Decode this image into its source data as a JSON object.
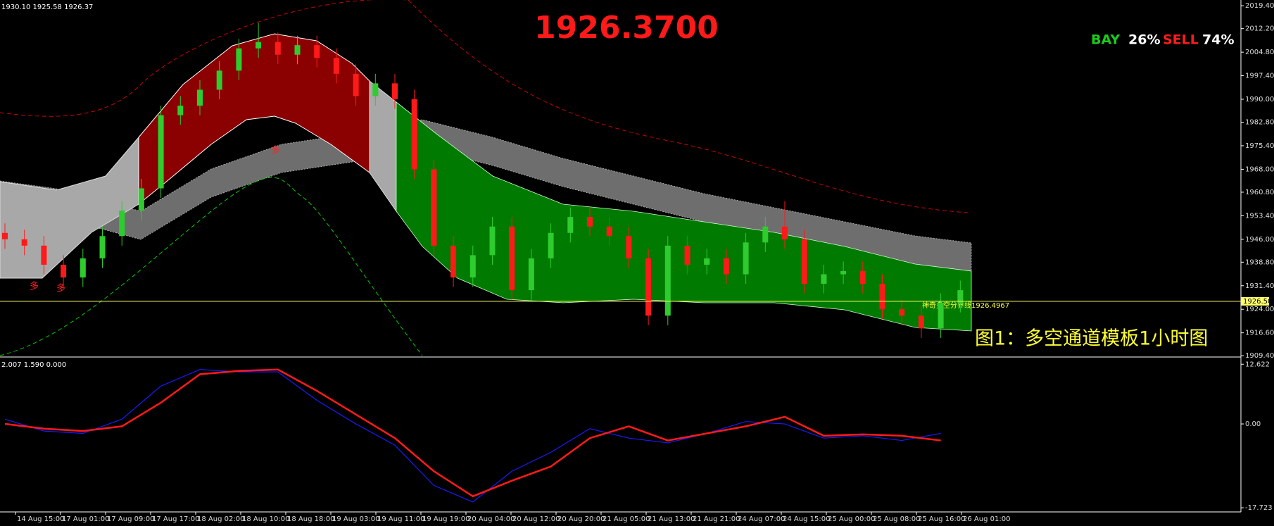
{
  "header": {
    "ohlc_info": "1930.10 1925.58 1926.37",
    "big_price": "1926.3700",
    "bay_label": "BAY",
    "bay_pct": "26%",
    "sell_label": "SELL",
    "sell_pct": "74%",
    "caption": "图1：多空通道模板1小时图",
    "line_label": "神奇多空分界线1926.4967",
    "markers": [
      "多",
      "多",
      "多"
    ],
    "indicator_info": "2.007 1.590 0.000"
  },
  "time_labels": [
    "14 Aug 15:00",
    "17 Aug 01:00",
    "17 Aug 09:00",
    "17 Aug 17:00",
    "18 Aug 02:00",
    "18 Aug 10:00",
    "18 Aug 18:00",
    "19 Aug 03:00",
    "19 Aug 11:00",
    "19 Aug 19:00",
    "20 Aug 04:00",
    "20 Aug 12:00",
    "20 Aug 20:00",
    "21 Aug 05:00",
    "21 Aug 13:00",
    "21 Aug 21:00",
    "24 Aug 07:00",
    "24 Aug 15:00",
    "25 Aug 00:00",
    "25 Aug 08:00",
    "25 Aug 16:00",
    "26 Aug 01:00"
  ],
  "chart_data": [
    {
      "type": "candlestick",
      "up_color": "#2ecc2e",
      "down_color": "#ff1a1a",
      "ylim": [
        1909.0,
        2021.2
      ],
      "yticks": [
        {
          "value": 2019.4,
          "label": "2019.40"
        },
        {
          "value": 2012.2,
          "label": "2012.20"
        },
        {
          "value": 2004.8,
          "label": "2004.80"
        },
        {
          "value": 1997.4,
          "label": "1997.40"
        },
        {
          "value": 1990.0,
          "label": "1990.00"
        },
        {
          "value": 1982.8,
          "label": "1982.80"
        },
        {
          "value": 1975.4,
          "label": "1975.40"
        },
        {
          "value": 1968.0,
          "label": "1968.00"
        },
        {
          "value": 1960.8,
          "label": "1960.80"
        },
        {
          "value": 1953.4,
          "label": "1953.40"
        },
        {
          "value": 1946.0,
          "label": "1946.00"
        },
        {
          "value": 1938.8,
          "label": "1938.80"
        },
        {
          "value": 1931.4,
          "label": "1931.40"
        },
        {
          "value": 1924.0,
          "label": "1924.00"
        },
        {
          "value": 1916.6,
          "label": "1916.60"
        },
        {
          "value": 1909.4,
          "label": "1909.40"
        }
      ],
      "price_line": {
        "value": 1926.5,
        "label": "1926.50",
        "color": "#ffff66"
      },
      "candles": {
        "open": [
          1948,
          1946,
          1944,
          1938,
          1934,
          1940,
          1947,
          1955,
          1962,
          1985,
          1988,
          1993,
          1999,
          2006,
          2008,
          2004,
          2007,
          2003,
          1998,
          1991,
          1995,
          1990,
          1968,
          1944,
          1934,
          1941,
          1950,
          1930,
          1940,
          1948,
          1953,
          1950,
          1947,
          1940,
          1922,
          1944,
          1938,
          1940,
          1935,
          1945,
          1950,
          1946,
          1932,
          1935,
          1936,
          1932,
          1924,
          1922,
          1918,
          1926
        ],
        "high": [
          1951,
          1949,
          1947,
          1941,
          1943,
          1950,
          1958,
          1965,
          1988,
          1991,
          1996,
          2002,
          2009,
          2014,
          2011,
          2010,
          2010,
          2006,
          2001,
          1998,
          1998,
          1993,
          1971,
          1947,
          1944,
          1953,
          1953,
          1943,
          1951,
          1956,
          1956,
          1953,
          1950,
          1943,
          1947,
          1947,
          1943,
          1943,
          1948,
          1953,
          1958,
          1949,
          1938,
          1939,
          1939,
          1935,
          1927,
          1925,
          1929,
          1933
        ],
        "low": [
          1943,
          1941,
          1935,
          1931,
          1931,
          1937,
          1944,
          1952,
          1959,
          1982,
          1985,
          1990,
          1996,
          2003,
          2001,
          2001,
          2000,
          1995,
          1988,
          1988,
          1987,
          1965,
          1941,
          1931,
          1931,
          1938,
          1927,
          1927,
          1937,
          1945,
          1947,
          1944,
          1937,
          1919,
          1919,
          1935,
          1935,
          1932,
          1932,
          1942,
          1943,
          1929,
          1929,
          1932,
          1929,
          1921,
          1919,
          1915,
          1915,
          1923
        ],
        "close": [
          1946,
          1944,
          1938,
          1934,
          1940,
          1947,
          1955,
          1962,
          1985,
          1988,
          1993,
          1999,
          2006,
          2008,
          2004,
          2007,
          2003,
          1998,
          1991,
          1995,
          1990,
          1968,
          1944,
          1934,
          1941,
          1950,
          1930,
          1940,
          1948,
          1953,
          1950,
          1947,
          1940,
          1922,
          1944,
          1938,
          1940,
          1935,
          1945,
          1950,
          1946,
          1932,
          1935,
          1936,
          1932,
          1924,
          1922,
          1918,
          1926,
          1930
        ]
      }
    },
    {
      "type": "line",
      "ylim": [
        -18.6,
        14.0
      ],
      "yticks": [
        {
          "value": 12.622,
          "label": "12.622"
        },
        {
          "value": 0,
          "label": "0.00"
        },
        {
          "value": -17.723,
          "label": "-17.723"
        }
      ],
      "series": [
        {
          "color": "#1a1aff",
          "values": [
            1,
            -1.5,
            -2,
            1,
            8,
            11.5,
            11,
            11,
            5,
            0,
            -4.5,
            -13,
            -16.5,
            -10,
            -6,
            -1,
            -3,
            -4,
            -2,
            0.5,
            0,
            -3,
            -2.5,
            -3.5,
            -2
          ]
        },
        {
          "color": "#ff1a1a",
          "values": [
            0,
            -1,
            -1.5,
            -0.5,
            4.5,
            10.5,
            11.2,
            11.5,
            7,
            2,
            -3,
            -10,
            -15.3,
            -12,
            -9,
            -3,
            -0.5,
            -3.5,
            -2,
            -0.5,
            1.5,
            -2.5,
            -2.2,
            -2.5,
            -3.5
          ]
        }
      ]
    }
  ]
}
